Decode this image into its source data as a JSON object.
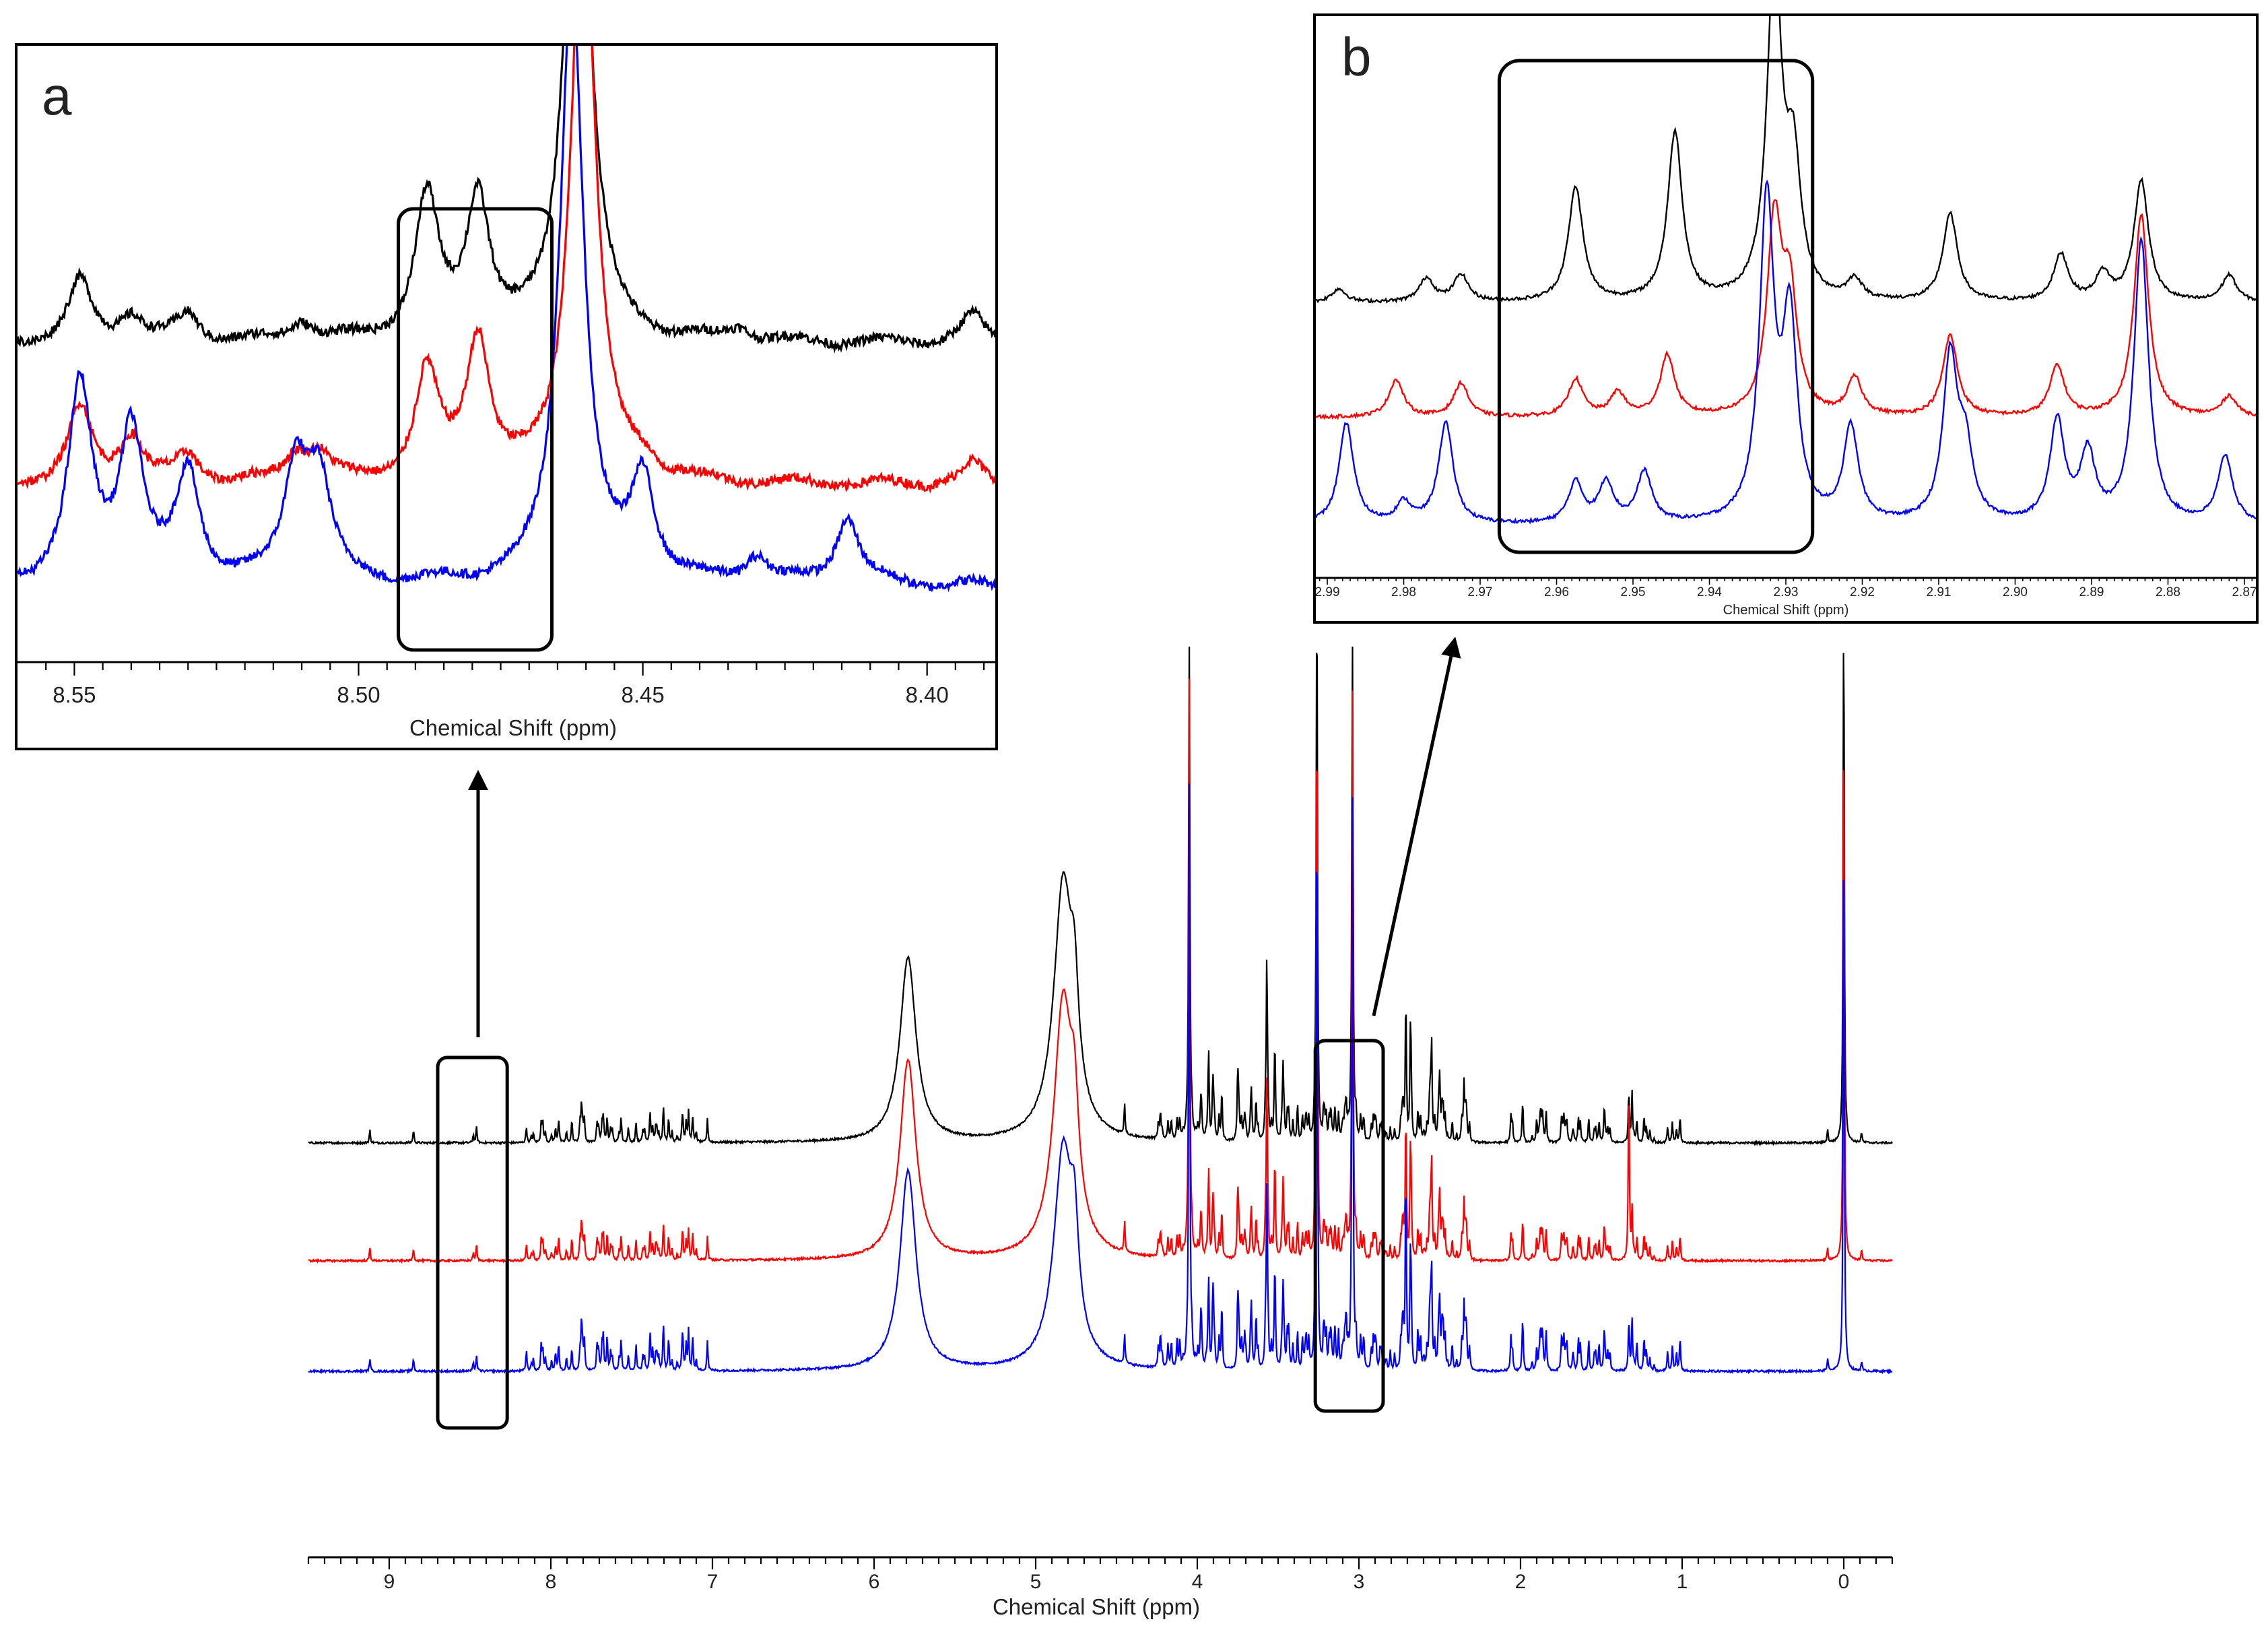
{
  "chart_data": [
    {
      "id": "main",
      "type": "line",
      "title": "",
      "xlabel": "Chemical Shift (ppm)",
      "xlim": [
        9.5,
        -0.3
      ],
      "reversed_x": true,
      "tick_labels": [
        "9",
        "8",
        "7",
        "6",
        "5",
        "4",
        "3",
        "2",
        "1",
        "0"
      ],
      "tick_values": [
        9,
        8,
        7,
        6,
        5,
        4,
        3,
        2,
        1,
        0
      ],
      "series": [
        {
          "name": "spectrum-black",
          "color": "#000000"
        },
        {
          "name": "spectrum-red",
          "color": "#ff0000"
        },
        {
          "name": "spectrum-blue",
          "color": "#0000ff"
        }
      ],
      "peaks": [
        {
          "ppm": 9.12,
          "h": 0.05
        },
        {
          "ppm": 8.85,
          "h": 0.05
        },
        {
          "ppm": 8.48,
          "h": 0.03
        },
        {
          "ppm": 8.46,
          "h": 0.06
        },
        {
          "ppm": 8.05,
          "h": 0.08
        },
        {
          "ppm": 7.95,
          "h": 0.05
        },
        {
          "ppm": 7.87,
          "h": 0.09
        },
        {
          "ppm": 7.82,
          "h": 0.07
        },
        {
          "ppm": 7.62,
          "h": 0.05
        },
        {
          "ppm": 7.52,
          "h": 0.06
        },
        {
          "ppm": 7.42,
          "h": 0.05
        },
        {
          "ppm": 7.35,
          "h": 0.06
        },
        {
          "ppm": 7.25,
          "h": 0.04
        },
        {
          "ppm": 7.1,
          "h": 0.04
        },
        {
          "ppm": 5.79,
          "h": 0.72,
          "w": 0.06
        },
        {
          "ppm": 4.83,
          "h": 1.0,
          "w": 0.07
        },
        {
          "ppm": 4.76,
          "h": 0.35,
          "w": 0.03
        },
        {
          "ppm": 4.45,
          "h": 0.12
        },
        {
          "ppm": 4.05,
          "h": 2.2
        },
        {
          "ppm": 3.93,
          "h": 0.35
        },
        {
          "ppm": 3.75,
          "h": 0.25
        },
        {
          "ppm": 3.57,
          "h": 0.7
        },
        {
          "ppm": 3.52,
          "h": 0.32
        },
        {
          "ppm": 3.47,
          "h": 0.22
        },
        {
          "ppm": 3.38,
          "h": 0.15
        },
        {
          "ppm": 3.26,
          "h": 2.2
        },
        {
          "ppm": 3.04,
          "h": 2.2
        },
        {
          "ppm": 2.71,
          "h": 0.43
        },
        {
          "ppm": 2.68,
          "h": 0.43
        },
        {
          "ppm": 2.55,
          "h": 0.35
        },
        {
          "ppm": 2.5,
          "h": 0.22
        },
        {
          "ppm": 2.35,
          "h": 0.15
        },
        {
          "ppm": 2.05,
          "h": 0.08
        },
        {
          "ppm": 1.9,
          "h": 0.09
        },
        {
          "ppm": 1.48,
          "h": 0.08
        },
        {
          "ppm": 1.33,
          "h": 0.2
        },
        {
          "ppm": 1.31,
          "h": 0.2
        },
        {
          "ppm": 1.2,
          "h": 0.05
        },
        {
          "ppm": 0.1,
          "h": 0.05
        },
        {
          "ppm": 0.0,
          "h": 2.2
        },
        {
          "ppm": -0.11,
          "h": 0.04
        }
      ],
      "highlight_regions": [
        {
          "label": "aromatic-box",
          "ppm_from": 8.7,
          "ppm_to": 8.27
        },
        {
          "label": "aliphatic-box",
          "ppm_from": 3.27,
          "ppm_to": 2.85
        }
      ]
    },
    {
      "id": "a",
      "type": "line",
      "panel_label": "a",
      "xlabel": "Chemical Shift (ppm)",
      "xlim": [
        8.56,
        8.388
      ],
      "tick_labels": [
        "8.55",
        "8.50",
        "8.45",
        "8.40"
      ],
      "tick_values": [
        8.55,
        8.5,
        8.45,
        8.4
      ],
      "highlight_region": {
        "ppm_from": 8.493,
        "ppm_to": 8.466
      }
    },
    {
      "id": "b",
      "type": "line",
      "panel_label": "b",
      "xlabel": "Chemical Shift (ppm)",
      "xlim": [
        2.9915,
        2.8685
      ],
      "tick_labels": [
        "2.99",
        "2.98",
        "2.97",
        "2.96",
        "2.95",
        "2.94",
        "2.93",
        "2.92",
        "2.91",
        "2.90",
        "2.89",
        "2.88",
        "2.87"
      ],
      "tick_values": [
        2.99,
        2.98,
        2.97,
        2.96,
        2.95,
        2.94,
        2.93,
        2.92,
        2.91,
        2.9,
        2.89,
        2.88,
        2.87
      ],
      "highlight_region": {
        "ppm_from": 2.9675,
        "ppm_to": 2.9265
      }
    }
  ]
}
